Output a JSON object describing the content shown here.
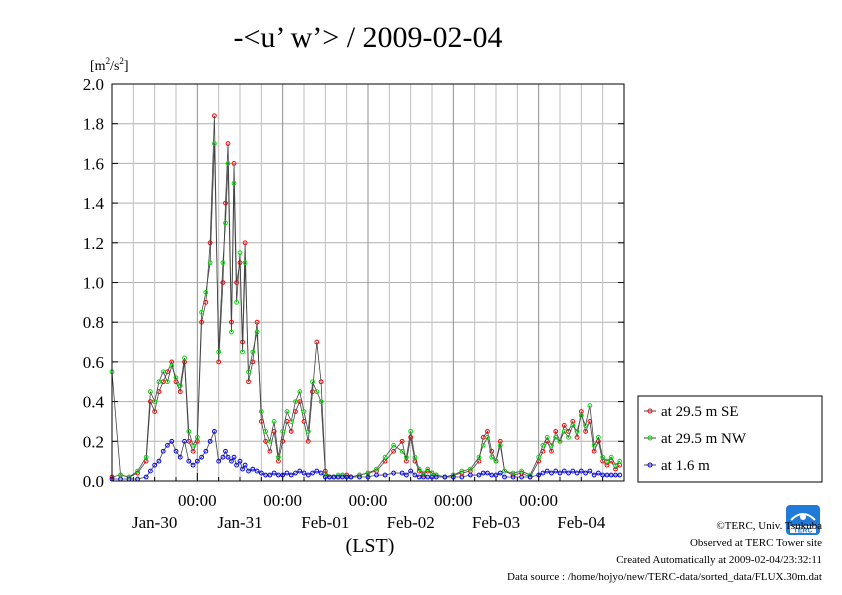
{
  "chart_data": {
    "type": "line",
    "title": "-<u’ w’> / 2009-02-04",
    "ylabel_base": "[m",
    "ylabel_sup1": "2",
    "ylabel_mid": "/s",
    "ylabel_sup2": "2",
    "ylabel_end": "]",
    "xlabel": "(LST)",
    "ylim": [
      0.0,
      2.0
    ],
    "xlim": [
      0,
      6
    ],
    "y_ticks": [
      "0.0",
      "0.2",
      "0.4",
      "0.6",
      "0.8",
      "1.0",
      "1.2",
      "1.4",
      "1.6",
      "1.8",
      "2.0"
    ],
    "x_time_ticks": [
      "00:00",
      "00:00",
      "00:00",
      "00:00",
      "00:00"
    ],
    "x_date_labels": [
      "Jan-30",
      "Jan-31",
      "Feb-01",
      "Feb-02",
      "Feb-03",
      "Feb-04"
    ],
    "grid": true,
    "legend_position": "right",
    "series": [
      {
        "name": "at 29.5 m SE",
        "color": "#ff0000",
        "x": [
          0.0,
          0.1,
          0.2,
          0.3,
          0.4,
          0.45,
          0.5,
          0.55,
          0.6,
          0.65,
          0.7,
          0.75,
          0.8,
          0.85,
          0.9,
          0.95,
          1.0,
          1.05,
          1.1,
          1.15,
          1.2,
          1.25,
          1.3,
          1.33,
          1.36,
          1.4,
          1.43,
          1.46,
          1.5,
          1.53,
          1.56,
          1.6,
          1.65,
          1.7,
          1.75,
          1.8,
          1.85,
          1.9,
          1.95,
          2.0,
          2.05,
          2.1,
          2.15,
          2.2,
          2.25,
          2.3,
          2.35,
          2.4,
          2.45,
          2.5,
          2.55,
          2.6,
          2.65,
          2.7,
          2.75,
          2.8,
          2.9,
          3.0,
          3.1,
          3.2,
          3.3,
          3.4,
          3.45,
          3.5,
          3.55,
          3.6,
          3.65,
          3.7,
          3.75,
          3.8,
          3.9,
          4.0,
          4.1,
          4.2,
          4.3,
          4.35,
          4.4,
          4.45,
          4.5,
          4.55,
          4.6,
          4.7,
          4.8,
          4.9,
          5.0,
          5.05,
          5.1,
          5.15,
          5.2,
          5.25,
          5.3,
          5.35,
          5.4,
          5.45,
          5.5,
          5.55,
          5.6,
          5.65,
          5.7,
          5.75,
          5.8,
          5.85,
          5.9,
          5.95
        ],
        "y": [
          0.02,
          0.03,
          0.02,
          0.04,
          0.1,
          0.4,
          0.35,
          0.45,
          0.5,
          0.55,
          0.6,
          0.5,
          0.45,
          0.6,
          0.2,
          0.15,
          0.2,
          0.8,
          0.9,
          1.2,
          1.84,
          0.6,
          1.0,
          1.4,
          1.7,
          0.8,
          1.6,
          1.0,
          1.1,
          0.7,
          1.2,
          0.5,
          0.6,
          0.8,
          0.3,
          0.2,
          0.15,
          0.25,
          0.1,
          0.2,
          0.3,
          0.25,
          0.35,
          0.4,
          0.3,
          0.2,
          0.45,
          0.7,
          0.5,
          0.05,
          0.02,
          0.02,
          0.02,
          0.03,
          0.03,
          0.02,
          0.03,
          0.04,
          0.05,
          0.1,
          0.15,
          0.2,
          0.1,
          0.22,
          0.1,
          0.05,
          0.03,
          0.05,
          0.04,
          0.03,
          0.02,
          0.03,
          0.04,
          0.05,
          0.1,
          0.22,
          0.25,
          0.15,
          0.1,
          0.2,
          0.05,
          0.03,
          0.04,
          0.02,
          0.1,
          0.15,
          0.2,
          0.15,
          0.25,
          0.2,
          0.28,
          0.25,
          0.3,
          0.22,
          0.35,
          0.25,
          0.3,
          0.15,
          0.2,
          0.1,
          0.08,
          0.1,
          0.06,
          0.08
        ]
      },
      {
        "name": "at 29.5 m NW",
        "color": "#00dd00",
        "x": [
          0.0,
          0.1,
          0.2,
          0.3,
          0.4,
          0.45,
          0.5,
          0.55,
          0.6,
          0.65,
          0.7,
          0.75,
          0.8,
          0.85,
          0.9,
          0.95,
          1.0,
          1.05,
          1.1,
          1.15,
          1.2,
          1.25,
          1.3,
          1.33,
          1.36,
          1.4,
          1.43,
          1.46,
          1.5,
          1.53,
          1.56,
          1.6,
          1.65,
          1.7,
          1.75,
          1.8,
          1.85,
          1.9,
          1.95,
          2.0,
          2.05,
          2.1,
          2.15,
          2.2,
          2.25,
          2.3,
          2.35,
          2.4,
          2.45,
          2.5,
          2.55,
          2.6,
          2.65,
          2.7,
          2.75,
          2.8,
          2.9,
          3.0,
          3.1,
          3.2,
          3.3,
          3.4,
          3.45,
          3.5,
          3.55,
          3.6,
          3.65,
          3.7,
          3.75,
          3.8,
          3.9,
          4.0,
          4.1,
          4.2,
          4.3,
          4.35,
          4.4,
          4.45,
          4.5,
          4.55,
          4.6,
          4.7,
          4.8,
          4.9,
          5.0,
          5.05,
          5.1,
          5.15,
          5.2,
          5.25,
          5.3,
          5.35,
          5.4,
          5.45,
          5.5,
          5.55,
          5.6,
          5.65,
          5.7,
          5.75,
          5.8,
          5.85,
          5.9,
          5.95
        ],
        "y": [
          0.55,
          0.03,
          0.02,
          0.05,
          0.12,
          0.45,
          0.4,
          0.5,
          0.55,
          0.5,
          0.58,
          0.52,
          0.48,
          0.62,
          0.25,
          0.18,
          0.22,
          0.85,
          0.95,
          1.1,
          1.7,
          0.65,
          1.1,
          1.3,
          1.6,
          0.75,
          1.5,
          0.9,
          1.15,
          0.65,
          1.1,
          0.55,
          0.65,
          0.75,
          0.35,
          0.25,
          0.2,
          0.3,
          0.12,
          0.25,
          0.35,
          0.3,
          0.4,
          0.45,
          0.35,
          0.25,
          0.5,
          0.45,
          0.4,
          0.04,
          0.02,
          0.02,
          0.03,
          0.03,
          0.02,
          0.02,
          0.03,
          0.04,
          0.06,
          0.12,
          0.18,
          0.15,
          0.12,
          0.25,
          0.12,
          0.06,
          0.04,
          0.06,
          0.04,
          0.03,
          0.02,
          0.03,
          0.05,
          0.06,
          0.12,
          0.18,
          0.22,
          0.12,
          0.1,
          0.18,
          0.05,
          0.04,
          0.05,
          0.03,
          0.12,
          0.18,
          0.22,
          0.18,
          0.22,
          0.2,
          0.25,
          0.22,
          0.28,
          0.25,
          0.33,
          0.28,
          0.38,
          0.18,
          0.22,
          0.12,
          0.1,
          0.12,
          0.08,
          0.1
        ]
      },
      {
        "name": "at 1.6 m",
        "color": "#0000ff",
        "x": [
          0.0,
          0.1,
          0.2,
          0.3,
          0.4,
          0.45,
          0.5,
          0.55,
          0.6,
          0.65,
          0.7,
          0.75,
          0.8,
          0.85,
          0.9,
          0.95,
          1.0,
          1.05,
          1.1,
          1.15,
          1.2,
          1.25,
          1.3,
          1.33,
          1.36,
          1.4,
          1.43,
          1.46,
          1.5,
          1.53,
          1.56,
          1.6,
          1.65,
          1.7,
          1.75,
          1.8,
          1.85,
          1.9,
          1.95,
          2.0,
          2.05,
          2.1,
          2.15,
          2.2,
          2.25,
          2.3,
          2.35,
          2.4,
          2.45,
          2.5,
          2.55,
          2.6,
          2.65,
          2.7,
          2.75,
          2.8,
          2.9,
          3.0,
          3.1,
          3.2,
          3.3,
          3.4,
          3.45,
          3.5,
          3.55,
          3.6,
          3.65,
          3.7,
          3.75,
          3.8,
          3.9,
          4.0,
          4.1,
          4.2,
          4.3,
          4.35,
          4.4,
          4.45,
          4.5,
          4.55,
          4.6,
          4.7,
          4.8,
          4.9,
          5.0,
          5.05,
          5.1,
          5.15,
          5.2,
          5.25,
          5.3,
          5.35,
          5.4,
          5.45,
          5.5,
          5.55,
          5.6,
          5.65,
          5.7,
          5.75,
          5.8,
          5.85,
          5.9,
          5.95
        ],
        "y": [
          0.01,
          0.01,
          0.01,
          0.01,
          0.02,
          0.05,
          0.08,
          0.1,
          0.15,
          0.18,
          0.2,
          0.15,
          0.12,
          0.2,
          0.1,
          0.08,
          0.1,
          0.12,
          0.15,
          0.2,
          0.25,
          0.1,
          0.12,
          0.15,
          0.12,
          0.1,
          0.12,
          0.08,
          0.1,
          0.06,
          0.08,
          0.05,
          0.06,
          0.05,
          0.04,
          0.03,
          0.03,
          0.04,
          0.03,
          0.03,
          0.04,
          0.03,
          0.04,
          0.05,
          0.04,
          0.03,
          0.04,
          0.05,
          0.04,
          0.02,
          0.02,
          0.02,
          0.02,
          0.02,
          0.02,
          0.02,
          0.02,
          0.02,
          0.03,
          0.03,
          0.04,
          0.04,
          0.03,
          0.05,
          0.03,
          0.02,
          0.02,
          0.02,
          0.02,
          0.02,
          0.02,
          0.02,
          0.02,
          0.03,
          0.03,
          0.04,
          0.04,
          0.03,
          0.03,
          0.04,
          0.02,
          0.02,
          0.02,
          0.02,
          0.03,
          0.04,
          0.05,
          0.04,
          0.05,
          0.04,
          0.05,
          0.04,
          0.05,
          0.04,
          0.05,
          0.04,
          0.05,
          0.03,
          0.04,
          0.03,
          0.03,
          0.03,
          0.03,
          0.03
        ]
      }
    ]
  },
  "footer": {
    "copyright": "©TERC, Univ. Tsukuba",
    "observed": "Observed at TERC Tower site",
    "created": "Created Automatically at 2009-02-04/23:32:11",
    "source": "Data source : /home/hojyo/new/TERC-data/sorted_data/FLUX.30m.dat"
  },
  "logo": {
    "text": "TERC",
    "color": "#1f7ad8"
  }
}
